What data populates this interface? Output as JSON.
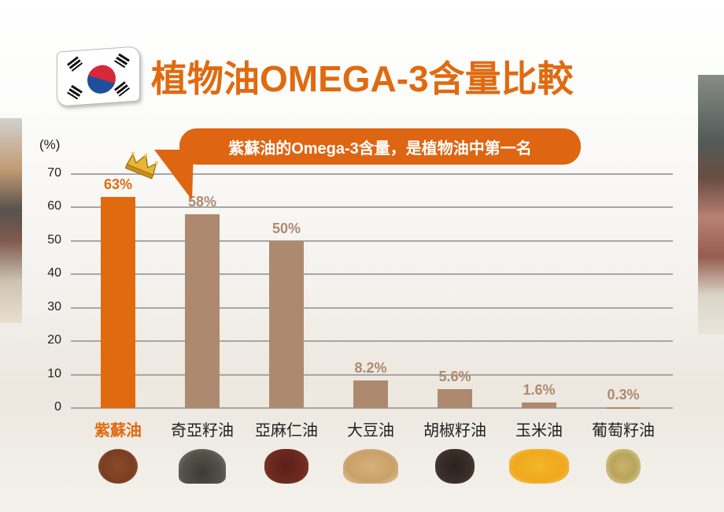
{
  "title": "植物油OMEGA-3含量比較",
  "callout": "紫蘇油的Omega-3含量，是植物油中第一名",
  "colors": {
    "highlight": "#e06a10",
    "bar_default": "#ad8a6f",
    "grid": "#a6a6a6",
    "callout_bg": "#de6511"
  },
  "icons": {
    "flag": "south-korea-flag-icon",
    "crown": "crown-icon"
  },
  "chart_data": {
    "type": "bar",
    "title": "植物油OMEGA-3含量比較",
    "xlabel": "",
    "ylabel": "(%)",
    "ylim": [
      0,
      70
    ],
    "yticks": [
      0,
      10,
      20,
      30,
      40,
      50,
      60,
      70
    ],
    "grid": true,
    "categories": [
      "紫蘇油",
      "奇亞籽油",
      "亞麻仁油",
      "大豆油",
      "胡椒籽油",
      "玉米油",
      "葡萄籽油"
    ],
    "values": [
      63,
      58,
      50,
      8.2,
      5.6,
      1.6,
      0.3
    ],
    "value_labels": [
      "63%",
      "58%",
      "50%",
      "8.2%",
      "5.6%",
      "1.6%",
      "0.3%"
    ],
    "highlight_index": 0,
    "annotation": "紫蘇油的Omega-3含量，是植物油中第一名"
  }
}
